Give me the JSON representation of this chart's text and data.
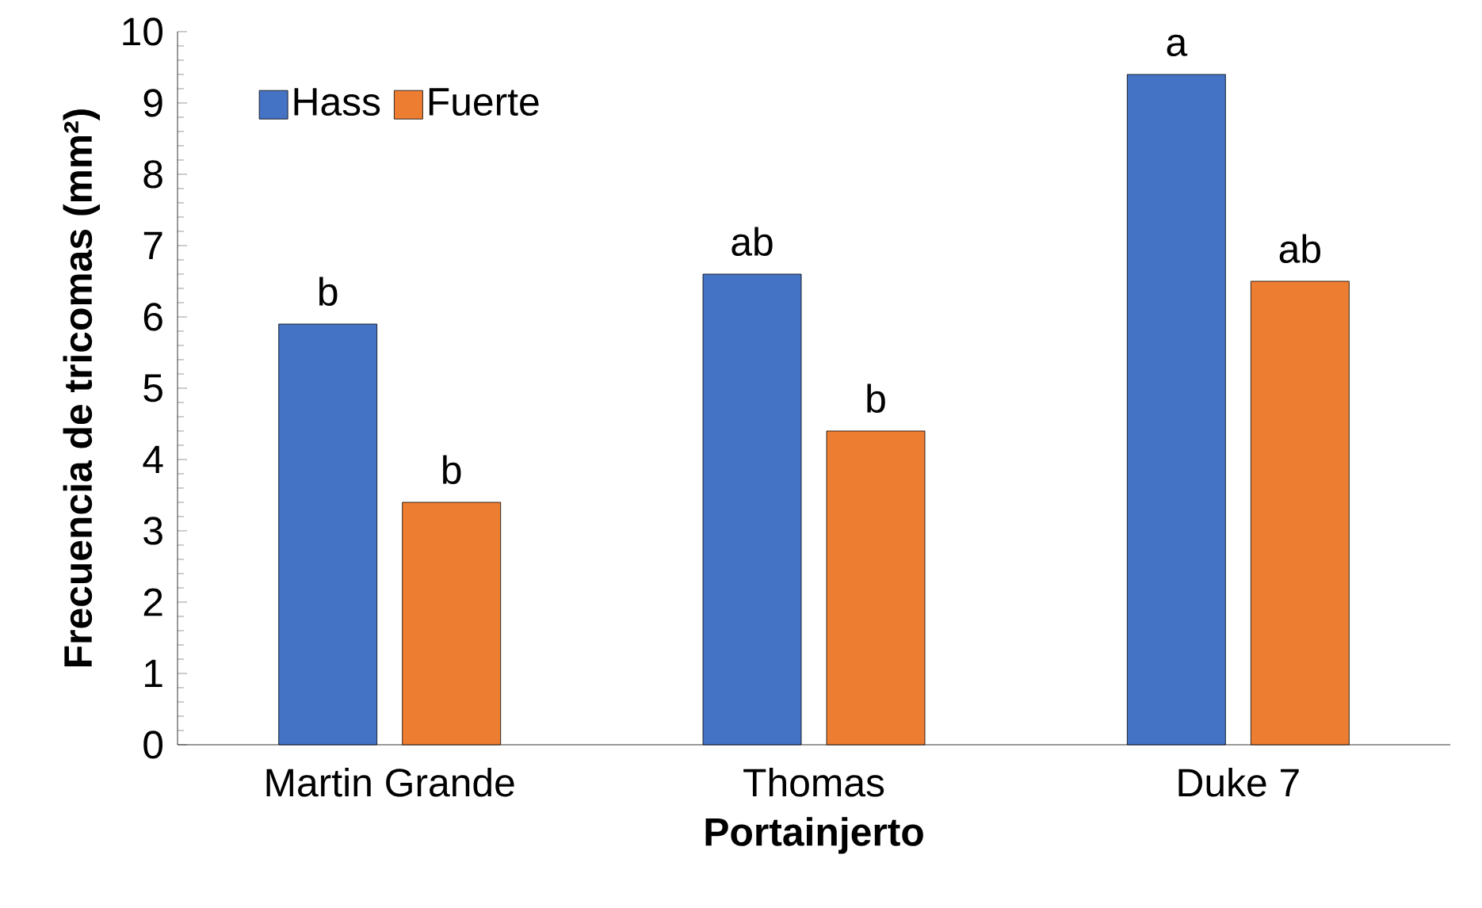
{
  "chart_data": {
    "type": "bar",
    "xlabel": "Portainjerto",
    "ylabel": "Frecuencia de tricomas (mm²)",
    "categories": [
      "Martin Grande",
      "Thomas",
      "Duke 7"
    ],
    "series": [
      {
        "name": "Hass",
        "color": "#4472c4",
        "values": [
          5.9,
          6.6,
          9.4
        ],
        "value_labels": [
          "b",
          "ab",
          "a"
        ]
      },
      {
        "name": "Fuerte",
        "color": "#ed7d31",
        "values": [
          3.4,
          4.4,
          6.5
        ],
        "value_labels": [
          "b",
          "b",
          "ab"
        ]
      }
    ],
    "ylim": [
      0,
      10
    ],
    "yticks": [
      0,
      1,
      2,
      3,
      4,
      5,
      6,
      7,
      8,
      9,
      10
    ],
    "legend": "top left"
  }
}
